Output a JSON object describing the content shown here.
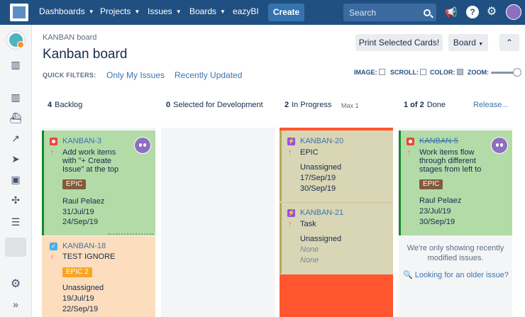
{
  "nav": {
    "items": [
      "Dashboards",
      "Projects",
      "Issues",
      "Boards",
      "eazyBI"
    ],
    "create_label": "Create",
    "search_placeholder": "Search"
  },
  "colors": {
    "nav_bg": "#205081",
    "done_green": "#14892c",
    "card_green": "#b3dba8",
    "card_orange": "#fcddbd",
    "card_tan": "#d9d6b5",
    "limit_red": "#ff5630",
    "epic_brown": "#815b3a",
    "epic_orange": "#f6a623"
  },
  "header": {
    "breadcrumb": "KANBAN board",
    "title": "Kanban board",
    "print_label": "Print Selected Cards!",
    "board_label": "Board",
    "quick_filters_label": "QUICK FILTERS:",
    "filters": [
      "Only My Issues",
      "Recently Updated"
    ],
    "options": {
      "image": "IMAGE:",
      "scroll": "SCROLL:",
      "color": "COLOR:",
      "zoom": "ZOOM:"
    }
  },
  "columns": [
    {
      "count": "4",
      "name": "Backlog"
    },
    {
      "count": "0",
      "name": "Selected for Development"
    },
    {
      "count": "2",
      "name": "In Progress",
      "sub": "Max 1"
    },
    {
      "count": "1 of 2",
      "name": "Done",
      "action": "Release..."
    }
  ],
  "cards": {
    "k3": {
      "key": "KANBAN-3",
      "summary": [
        "Add work items",
        "with \"+ Create",
        "Issue\" at the top"
      ],
      "epic": "EPIC",
      "assignee": "Raul Pelaez",
      "created": "31/Jul/19",
      "updated": "24/Sep/19",
      "type": "bug-icon"
    },
    "k18": {
      "key": "KANBAN-18",
      "summary": "TEST IGNORE",
      "epic": "EPIC 2",
      "assignee": "Unassigned",
      "created": "19/Jul/19",
      "updated": "22/Sep/19",
      "type": "task-checkbox-icon"
    },
    "k20": {
      "key": "KANBAN-20",
      "summary": "EPIC",
      "assignee": "Unassigned",
      "created": "17/Sep/19",
      "updated": "30/Sep/19",
      "type": "epic-icon"
    },
    "k21": {
      "key": "KANBAN-21",
      "summary": "Task",
      "assignee": "Unassigned",
      "created": "None",
      "updated": "None",
      "type": "epic-icon"
    },
    "k5": {
      "key": "KANBAN-5",
      "summary": [
        "Work items flow",
        "through different",
        "stages from left to"
      ],
      "epic": "EPIC",
      "assignee": "Raul Pelaez",
      "created": "23/Jul/19",
      "updated": "30/Sep/19",
      "type": "bug-icon"
    }
  },
  "done_info": {
    "message": [
      "We're only showing recently",
      "modified issues."
    ],
    "older_link": "Looking for an older issue?"
  }
}
